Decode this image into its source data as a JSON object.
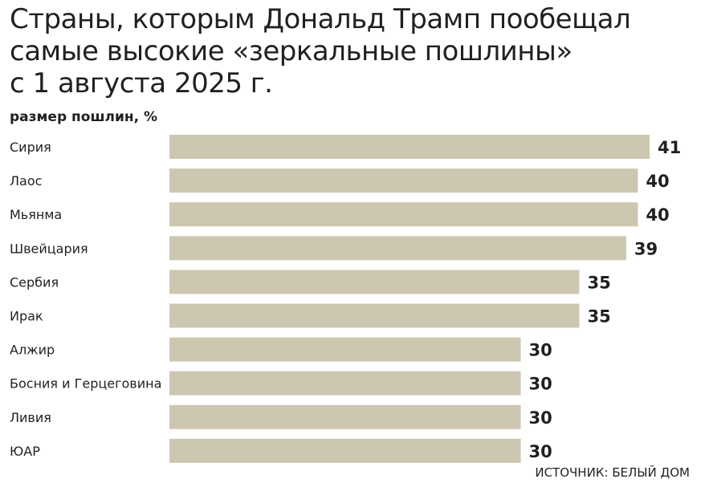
{
  "chart_data": {
    "type": "bar",
    "orientation": "horizontal",
    "title_lines": [
      "Страны, которым Дональд Трамп пообещал",
      "самые высокие «зеркальные пошлины»",
      "с 1 августа 2025 г."
    ],
    "subtitle": "размер пошлин, %",
    "categories": [
      "Сирия",
      "Лаос",
      "Мьянма",
      "Швейцария",
      "Сербия",
      "Ирак",
      "Алжир",
      "Босния и Герцеговина",
      "Ливия",
      "ЮАР"
    ],
    "values": [
      41,
      40,
      40,
      39,
      35,
      35,
      30,
      30,
      30,
      30
    ],
    "xlim": [
      0,
      41
    ],
    "grid": false,
    "bar_color": "#cdc7b1"
  },
  "source": "ИСТОЧНИК: БЕЛЫЙ ДОМ"
}
